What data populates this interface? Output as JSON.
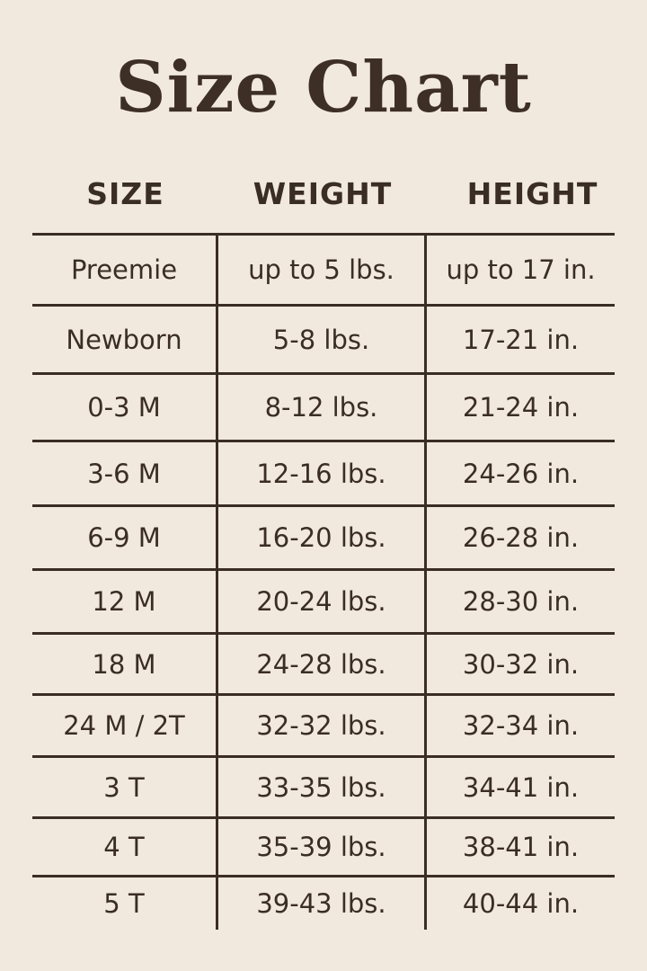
{
  "title": "Size Chart",
  "headers": [
    "SIZE",
    "WEIGHT",
    "HEIGHT"
  ],
  "rows": [
    {
      "size": "Preemie",
      "weight": "up to 5 lbs.",
      "height": "up to 17 in."
    },
    {
      "size": "Newborn",
      "weight": "5-8 lbs.",
      "height": "17-21 in."
    },
    {
      "size": "0-3 M",
      "weight": "8-12 lbs.",
      "height": "21-24 in."
    },
    {
      "size": "3-6 M",
      "weight": "12-16 lbs.",
      "height": "24-26 in."
    },
    {
      "size": "6-9 M",
      "weight": "16-20 lbs.",
      "height": "26-28 in."
    },
    {
      "size": "12 M",
      "weight": "20-24 lbs.",
      "height": "28-30 in."
    },
    {
      "size": "18 M",
      "weight": "24-28 lbs.",
      "height": "30-32 in."
    },
    {
      "size": "24 M / 2T",
      "weight": "32-32 lbs.",
      "height": "32-34 in."
    },
    {
      "size": "3 T",
      "weight": "33-35 lbs.",
      "height": "34-41 in."
    },
    {
      "size": "4 T",
      "weight": "35-39 lbs.",
      "height": "38-41 in."
    },
    {
      "size": "5 T",
      "weight": "39-43 lbs.",
      "height": "40-44 in."
    }
  ],
  "colors": {
    "background": "#f2e9de",
    "text": "#3a2e24"
  }
}
